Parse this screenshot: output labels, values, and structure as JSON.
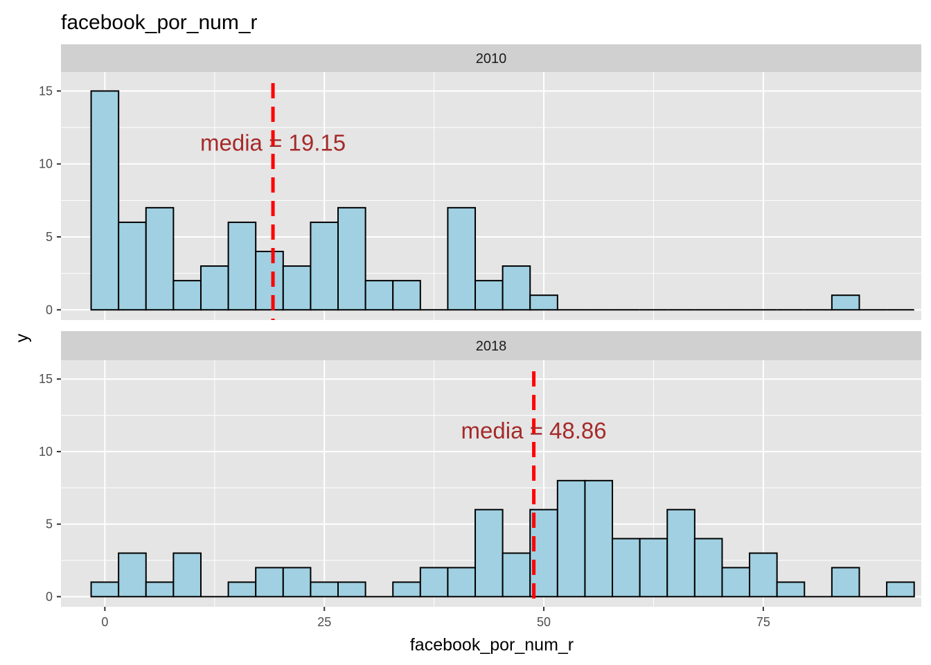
{
  "chart_data": {
    "type": "bar",
    "title": "facebook_por_num_r",
    "xlabel": "facebook_por_num_r",
    "ylabel": "y",
    "xlim": [
      -5,
      93
    ],
    "ylim": [
      -0.7,
      16.3
    ],
    "x_ticks": [
      0,
      25,
      50,
      75
    ],
    "y_ticks": [
      0,
      5,
      10,
      15
    ],
    "grid": true,
    "legend": "none",
    "bin_width": 3.125,
    "bin_start": -1.5625,
    "series": [
      {
        "panel": "2010",
        "counts": [
          15,
          6,
          7,
          2,
          3,
          6,
          4,
          3,
          6,
          7,
          2,
          2,
          0,
          7,
          2,
          3,
          1,
          0,
          0,
          0,
          0,
          0,
          0,
          0,
          0,
          0,
          0,
          1,
          0,
          0
        ],
        "mean_line": 19.15,
        "annotation": "media = 19.15"
      },
      {
        "panel": "2018",
        "counts": [
          1,
          3,
          1,
          3,
          0,
          1,
          2,
          2,
          1,
          1,
          0,
          1,
          2,
          2,
          6,
          3,
          6,
          8,
          8,
          4,
          4,
          6,
          4,
          2,
          3,
          1,
          0,
          2,
          0,
          1
        ],
        "mean_line": 48.86,
        "annotation": "media = 48.86"
      }
    ],
    "colors": {
      "panel_bg": "#e5e5e5",
      "strip_bg": "#d0d0d0",
      "grid": "#ffffff",
      "bar_fill": "#a0d0e2",
      "bar_edge": "#000000",
      "mean_line": "#ff0000",
      "annotation": "#a52a2a"
    }
  }
}
